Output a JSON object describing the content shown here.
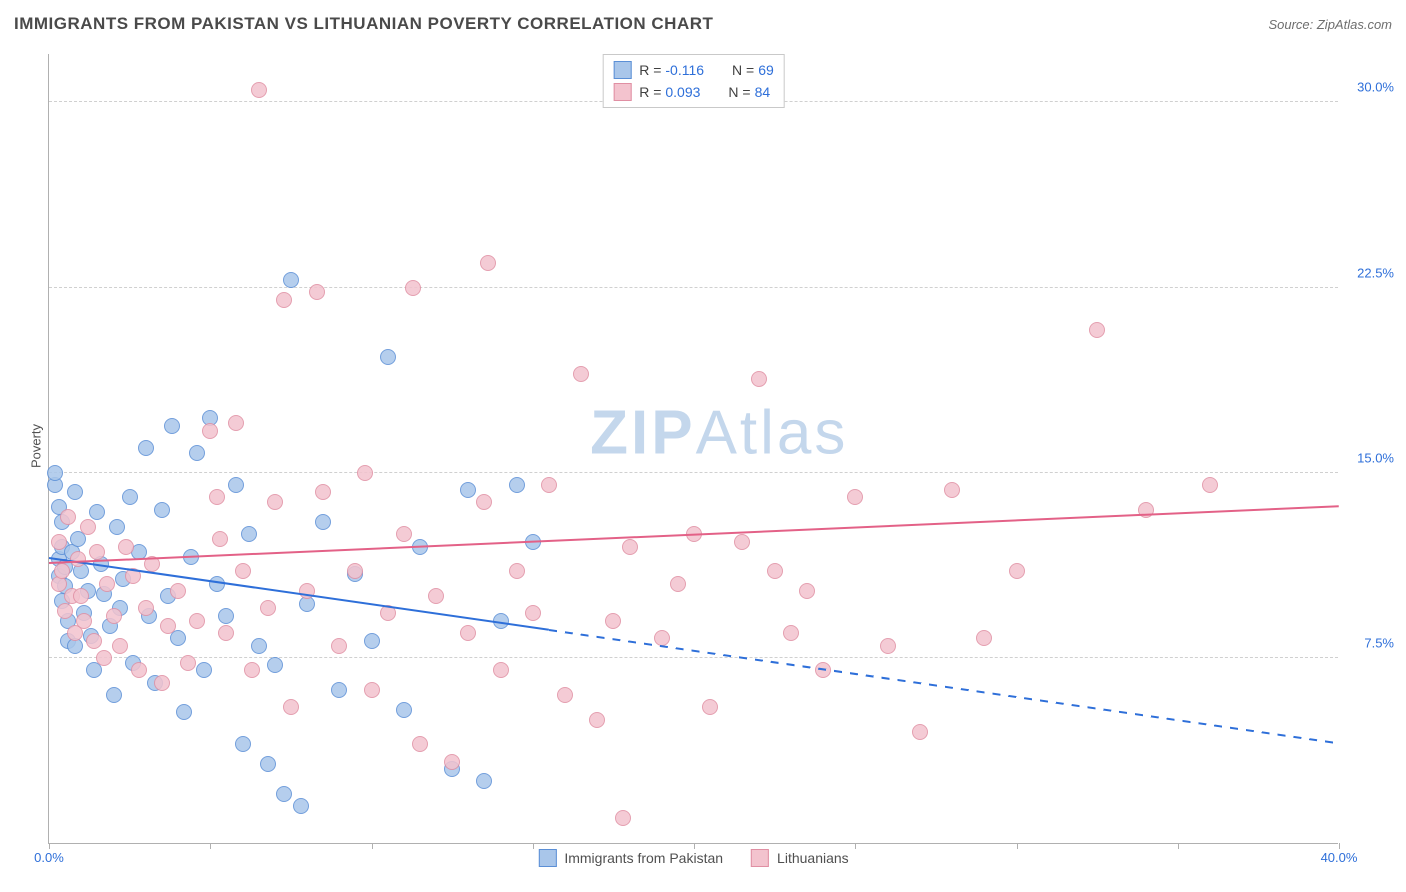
{
  "title": "IMMIGRANTS FROM PAKISTAN VS LITHUANIAN POVERTY CORRELATION CHART",
  "source": "Source: ZipAtlas.com",
  "ylabel": "Poverty",
  "watermark_bold": "ZIP",
  "watermark_light": "Atlas",
  "watermark_color": "#c4d7ec",
  "chart": {
    "type": "scatter",
    "xlim": [
      0,
      40
    ],
    "ylim": [
      0,
      32
    ],
    "x_ticks": [
      0,
      5,
      10,
      15,
      20,
      25,
      30,
      35,
      40
    ],
    "x_tick_labels": {
      "0": "0.0%",
      "40": "40.0%"
    },
    "y_gridlines": [
      7.5,
      15.0,
      22.5,
      30.0
    ],
    "y_tick_labels": [
      "7.5%",
      "15.0%",
      "22.5%",
      "30.0%"
    ],
    "background_color": "#ffffff",
    "grid_color": "#d0d0d0",
    "axis_color": "#b0b0b0",
    "x_label_color": "#2e6fd9",
    "y_label_color": "#2e6fd9",
    "marker_radius": 8,
    "marker_border_width": 1.5,
    "marker_fill_opacity": 0.35,
    "trendline_width": 2
  },
  "series": [
    {
      "id": "pakistan",
      "label": "Immigrants from Pakistan",
      "color_border": "#5b8fd6",
      "color_fill": "#a9c6ea",
      "trend_color": "#2e6fd9",
      "R": "-0.116",
      "N": "69",
      "trend": {
        "x1": 0,
        "y1": 11.5,
        "x2": 40,
        "y2": 4.0,
        "dash_after_x": 15.5
      },
      "points": [
        [
          0.2,
          14.5
        ],
        [
          0.2,
          15.0
        ],
        [
          0.3,
          13.6
        ],
        [
          0.3,
          11.5
        ],
        [
          0.3,
          10.8
        ],
        [
          0.4,
          9.8
        ],
        [
          0.4,
          12.0
        ],
        [
          0.4,
          13.0
        ],
        [
          0.5,
          10.4
        ],
        [
          0.5,
          11.2
        ],
        [
          0.6,
          9.0
        ],
        [
          0.6,
          8.2
        ],
        [
          0.7,
          11.8
        ],
        [
          0.8,
          14.2
        ],
        [
          0.8,
          8.0
        ],
        [
          0.9,
          12.3
        ],
        [
          1.0,
          11.0
        ],
        [
          1.1,
          9.3
        ],
        [
          1.2,
          10.2
        ],
        [
          1.3,
          8.4
        ],
        [
          1.4,
          7.0
        ],
        [
          1.5,
          13.4
        ],
        [
          1.6,
          11.3
        ],
        [
          1.7,
          10.1
        ],
        [
          1.9,
          8.8
        ],
        [
          2.0,
          6.0
        ],
        [
          2.1,
          12.8
        ],
        [
          2.2,
          9.5
        ],
        [
          2.3,
          10.7
        ],
        [
          2.5,
          14.0
        ],
        [
          2.6,
          7.3
        ],
        [
          2.8,
          11.8
        ],
        [
          3.0,
          16.0
        ],
        [
          3.1,
          9.2
        ],
        [
          3.3,
          6.5
        ],
        [
          3.5,
          13.5
        ],
        [
          3.7,
          10.0
        ],
        [
          3.8,
          16.9
        ],
        [
          4.0,
          8.3
        ],
        [
          4.2,
          5.3
        ],
        [
          4.4,
          11.6
        ],
        [
          4.6,
          15.8
        ],
        [
          4.8,
          7.0
        ],
        [
          5.0,
          17.2
        ],
        [
          5.2,
          10.5
        ],
        [
          5.5,
          9.2
        ],
        [
          5.8,
          14.5
        ],
        [
          6.0,
          4.0
        ],
        [
          6.2,
          12.5
        ],
        [
          6.5,
          8.0
        ],
        [
          6.8,
          3.2
        ],
        [
          7.0,
          7.2
        ],
        [
          7.3,
          2.0
        ],
        [
          7.5,
          22.8
        ],
        [
          7.8,
          1.5
        ],
        [
          8.0,
          9.7
        ],
        [
          8.5,
          13.0
        ],
        [
          9.0,
          6.2
        ],
        [
          9.5,
          10.9
        ],
        [
          10.0,
          8.2
        ],
        [
          10.5,
          19.7
        ],
        [
          11.0,
          5.4
        ],
        [
          11.5,
          12.0
        ],
        [
          12.5,
          3.0
        ],
        [
          13.0,
          14.3
        ],
        [
          13.5,
          2.5
        ],
        [
          14.0,
          9.0
        ],
        [
          14.5,
          14.5
        ],
        [
          15.0,
          12.2
        ]
      ]
    },
    {
      "id": "lithuanians",
      "label": "Lithuanians",
      "color_border": "#e08fa3",
      "color_fill": "#f3c3ce",
      "trend_color": "#e36187",
      "R": "0.093",
      "N": "84",
      "trend": {
        "x1": 0,
        "y1": 11.3,
        "x2": 40,
        "y2": 13.6,
        "dash_after_x": null
      },
      "points": [
        [
          0.3,
          12.2
        ],
        [
          0.3,
          10.5
        ],
        [
          0.4,
          11.0
        ],
        [
          0.5,
          9.4
        ],
        [
          0.6,
          13.2
        ],
        [
          0.7,
          10.0
        ],
        [
          0.8,
          8.5
        ],
        [
          0.9,
          11.5
        ],
        [
          1.0,
          10.0
        ],
        [
          1.1,
          9.0
        ],
        [
          1.2,
          12.8
        ],
        [
          1.4,
          8.2
        ],
        [
          1.5,
          11.8
        ],
        [
          1.7,
          7.5
        ],
        [
          1.8,
          10.5
        ],
        [
          2.0,
          9.2
        ],
        [
          2.2,
          8.0
        ],
        [
          2.4,
          12.0
        ],
        [
          2.6,
          10.8
        ],
        [
          2.8,
          7.0
        ],
        [
          3.0,
          9.5
        ],
        [
          3.2,
          11.3
        ],
        [
          3.5,
          6.5
        ],
        [
          3.7,
          8.8
        ],
        [
          4.0,
          10.2
        ],
        [
          4.3,
          7.3
        ],
        [
          4.6,
          9.0
        ],
        [
          5.0,
          16.7
        ],
        [
          5.2,
          14.0
        ],
        [
          5.3,
          12.3
        ],
        [
          5.5,
          8.5
        ],
        [
          5.8,
          17.0
        ],
        [
          6.0,
          11.0
        ],
        [
          6.3,
          7.0
        ],
        [
          6.5,
          30.5
        ],
        [
          6.8,
          9.5
        ],
        [
          7.0,
          13.8
        ],
        [
          7.3,
          22.0
        ],
        [
          7.5,
          5.5
        ],
        [
          8.0,
          10.2
        ],
        [
          8.3,
          22.3
        ],
        [
          8.5,
          14.2
        ],
        [
          9.0,
          8.0
        ],
        [
          9.5,
          11.0
        ],
        [
          9.8,
          15.0
        ],
        [
          10.0,
          6.2
        ],
        [
          10.5,
          9.3
        ],
        [
          11.0,
          12.5
        ],
        [
          11.3,
          22.5
        ],
        [
          11.5,
          4.0
        ],
        [
          12.0,
          10.0
        ],
        [
          12.5,
          3.3
        ],
        [
          13.0,
          8.5
        ],
        [
          13.5,
          13.8
        ],
        [
          13.6,
          23.5
        ],
        [
          14.0,
          7.0
        ],
        [
          14.5,
          11.0
        ],
        [
          15.0,
          9.3
        ],
        [
          15.5,
          14.5
        ],
        [
          16.0,
          6.0
        ],
        [
          16.5,
          19.0
        ],
        [
          17.0,
          5.0
        ],
        [
          17.5,
          9.0
        ],
        [
          17.8,
          1.0
        ],
        [
          18.0,
          12.0
        ],
        [
          19.0,
          8.3
        ],
        [
          19.5,
          10.5
        ],
        [
          20.0,
          12.5
        ],
        [
          20.5,
          5.5
        ],
        [
          21.5,
          12.2
        ],
        [
          22.0,
          18.8
        ],
        [
          22.5,
          11.0
        ],
        [
          23.0,
          8.5
        ],
        [
          23.5,
          10.2
        ],
        [
          24.0,
          7.0
        ],
        [
          25.0,
          14.0
        ],
        [
          26.0,
          8.0
        ],
        [
          27.0,
          4.5
        ],
        [
          28.0,
          14.3
        ],
        [
          29.0,
          8.3
        ],
        [
          30.0,
          11.0
        ],
        [
          32.5,
          20.8
        ],
        [
          34.0,
          13.5
        ],
        [
          36.0,
          14.5
        ]
      ]
    }
  ],
  "legend_top": {
    "R_label": "R =",
    "N_label": "N =",
    "value_color": "#2e6fd9",
    "border_color": "#c9c9c9"
  },
  "legend_bottom_order": [
    "pakistan",
    "lithuanians"
  ]
}
